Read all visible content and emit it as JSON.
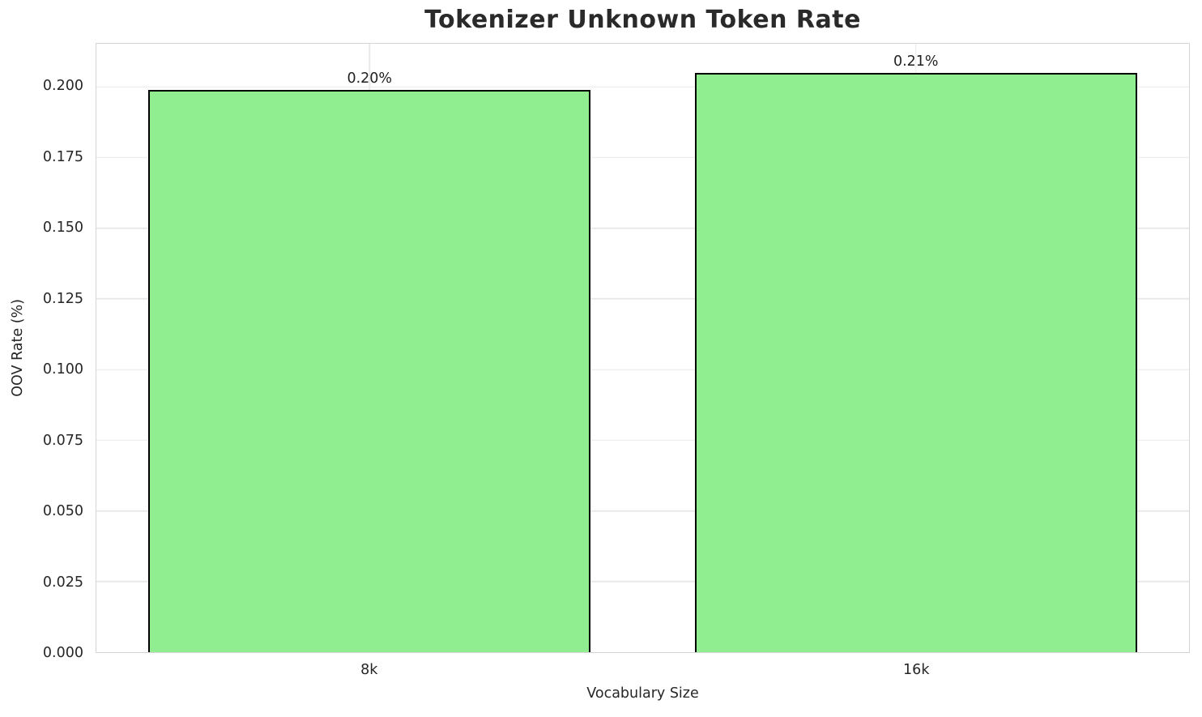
{
  "chart_data": {
    "type": "bar",
    "title": "Tokenizer Unknown Token Rate",
    "xlabel": "Vocabulary Size",
    "ylabel": "OOV Rate (%)",
    "categories": [
      "8k",
      "16k"
    ],
    "values": [
      0.199,
      0.205
    ],
    "bar_labels": [
      "0.20%",
      "0.21%"
    ],
    "ylim": [
      0,
      0.21525
    ],
    "yticks": [
      0,
      0.025,
      0.05,
      0.075,
      0.1,
      0.125,
      0.15,
      0.175,
      0.2
    ],
    "ytick_labels": [
      "0.000",
      "0.025",
      "0.050",
      "0.075",
      "0.100",
      "0.125",
      "0.150",
      "0.175",
      "0.200"
    ],
    "grid": true,
    "legend": "none",
    "bar_width_fraction": 0.81,
    "colors": {
      "bar_fill": "#90EE90",
      "bar_edge": "#000000",
      "grid_line": "#e9e9e9",
      "spine": "#d5d5d5",
      "text": "#262626",
      "title_text": "#2a2a2a",
      "background": "#ffffff"
    }
  }
}
